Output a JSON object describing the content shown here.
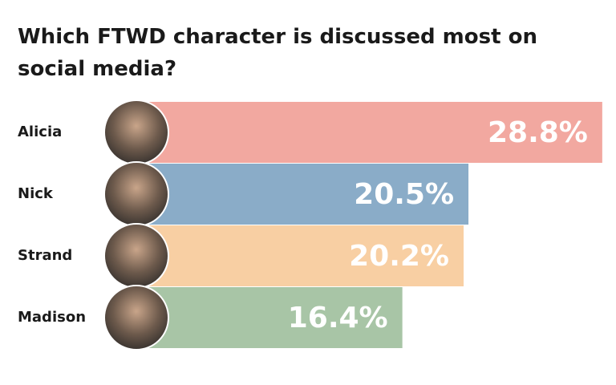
{
  "chart_data": {
    "type": "bar",
    "orientation": "horizontal",
    "title": "Which FTWD character is discussed most on social media?",
    "categories": [
      "Alicia",
      "Nick",
      "Strand",
      "Madison"
    ],
    "values": [
      28.8,
      20.5,
      20.2,
      16.4
    ],
    "value_labels": [
      "28.8%",
      "20.5%",
      "20.2%",
      "16.4%"
    ],
    "colors": [
      "#f2a8a0",
      "#8aacc8",
      "#f8cfa3",
      "#a8c5a6"
    ]
  }
}
